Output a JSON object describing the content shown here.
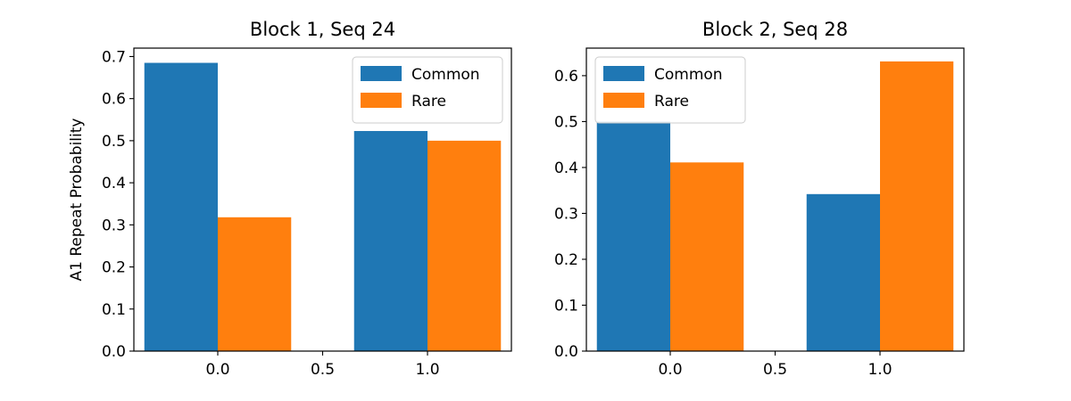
{
  "chart_data": [
    {
      "type": "bar",
      "title": "Block 1, Seq 24",
      "xlabel": "",
      "ylabel": "A1 Repeat Probability",
      "xlim": [
        -0.4,
        1.4
      ],
      "ylim": [
        0,
        0.72
      ],
      "x": [
        0.0,
        1.0
      ],
      "xticks": [
        "0.0",
        "0.5",
        "1.0"
      ],
      "yticks": [
        "0.0",
        "0.1",
        "0.2",
        "0.3",
        "0.4",
        "0.5",
        "0.6",
        "0.7"
      ],
      "legend_position": "upper right",
      "series": [
        {
          "name": "Common",
          "color": "#1f77b4",
          "values": [
            0.685,
            0.523
          ]
        },
        {
          "name": "Rare",
          "color": "#ff7f0e",
          "values": [
            0.318,
            0.5
          ]
        }
      ]
    },
    {
      "type": "bar",
      "title": "Block 2, Seq 28",
      "xlabel": "",
      "ylabel": "",
      "xlim": [
        -0.4,
        1.4
      ],
      "ylim": [
        0,
        0.66
      ],
      "x": [
        0.0,
        1.0
      ],
      "xticks": [
        "0.0",
        "0.5",
        "1.0"
      ],
      "yticks": [
        "0.0",
        "0.1",
        "0.2",
        "0.3",
        "0.4",
        "0.5",
        "0.6"
      ],
      "legend_position": "upper left",
      "series": [
        {
          "name": "Common",
          "color": "#1f77b4",
          "values": [
            0.5,
            0.342
          ]
        },
        {
          "name": "Rare",
          "color": "#ff7f0e",
          "values": [
            0.411,
            0.631
          ]
        }
      ]
    }
  ]
}
